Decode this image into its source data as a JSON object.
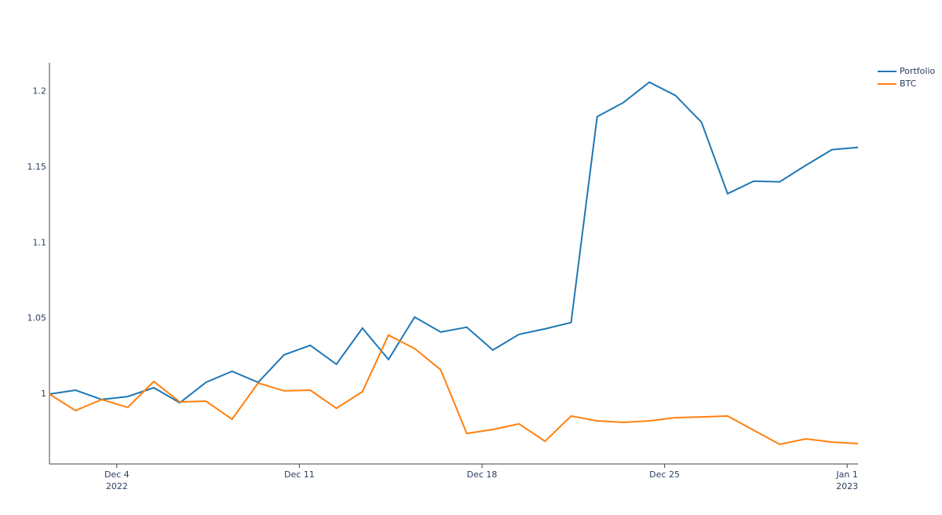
{
  "chart_data": {
    "type": "line",
    "x": [
      "2022-12-01T10:00",
      "2022-12-02T10:00",
      "2022-12-03T10:00",
      "2022-12-04T10:00",
      "2022-12-05T10:00",
      "2022-12-06T10:00",
      "2022-12-07T10:00",
      "2022-12-08T10:00",
      "2022-12-09T10:00",
      "2022-12-10T10:00",
      "2022-12-11T10:00",
      "2022-12-12T10:00",
      "2022-12-13T10:00",
      "2022-12-14T10:00",
      "2022-12-15T10:00",
      "2022-12-16T10:00",
      "2022-12-17T10:00",
      "2022-12-18T10:00",
      "2022-12-19T10:00",
      "2022-12-20T10:00",
      "2022-12-21T10:00",
      "2022-12-22T10:00",
      "2022-12-23T10:00",
      "2022-12-24T10:00",
      "2022-12-25T10:00",
      "2022-12-26T10:00",
      "2022-12-27T10:00",
      "2022-12-28T10:00",
      "2022-12-29T10:00",
      "2022-12-30T10:00",
      "2022-12-31T10:00",
      "2023-01-01T10:00"
    ],
    "series": [
      {
        "name": "Portfolio",
        "color": "#1f77b4",
        "values": [
          1.0,
          1.0026,
          0.9964,
          0.9984,
          1.0042,
          0.9943,
          1.0078,
          1.0151,
          1.0078,
          1.026,
          1.0322,
          1.0197,
          1.0436,
          1.0229,
          1.0509,
          1.041,
          1.0442,
          1.0291,
          1.0395,
          1.0431,
          1.0473,
          1.1834,
          1.1927,
          1.2062,
          1.1974,
          1.1797,
          1.1325,
          1.1408,
          1.1403,
          1.1512,
          1.1616,
          1.1631
        ]
      },
      {
        "name": "BTC",
        "color": "#ff7f0e",
        "values": [
          1.0,
          0.9891,
          0.9964,
          0.9912,
          1.0083,
          0.9948,
          0.9953,
          0.9834,
          1.0073,
          1.0021,
          1.0026,
          0.9906,
          1.0016,
          1.039,
          1.0301,
          1.0161,
          0.974,
          0.9766,
          0.9803,
          0.9688,
          0.9855,
          0.9823,
          0.9813,
          0.9823,
          0.9844,
          0.9849,
          0.9855,
          0.9761,
          0.9668,
          0.9704,
          0.9683,
          0.9673
        ]
      }
    ],
    "xlim": [
      "2022-12-01T10:00",
      "2023-01-01T10:00"
    ],
    "xticks": [
      {
        "value": "2022-12-04T00:00",
        "label": "Dec 4\n2022"
      },
      {
        "value": "2022-12-11T00:00",
        "label": "Dec 11"
      },
      {
        "value": "2022-12-18T00:00",
        "label": "Dec 18"
      },
      {
        "value": "2022-12-25T00:00",
        "label": "Dec 25"
      },
      {
        "value": "2023-01-01T00:00",
        "label": "Jan 1\n2023"
      }
    ],
    "ylim": [
      0.9538,
      1.219
    ],
    "yticks": [
      1,
      1.05,
      1.1,
      1.15,
      1.2
    ],
    "grid": false,
    "legend": "top-right"
  }
}
